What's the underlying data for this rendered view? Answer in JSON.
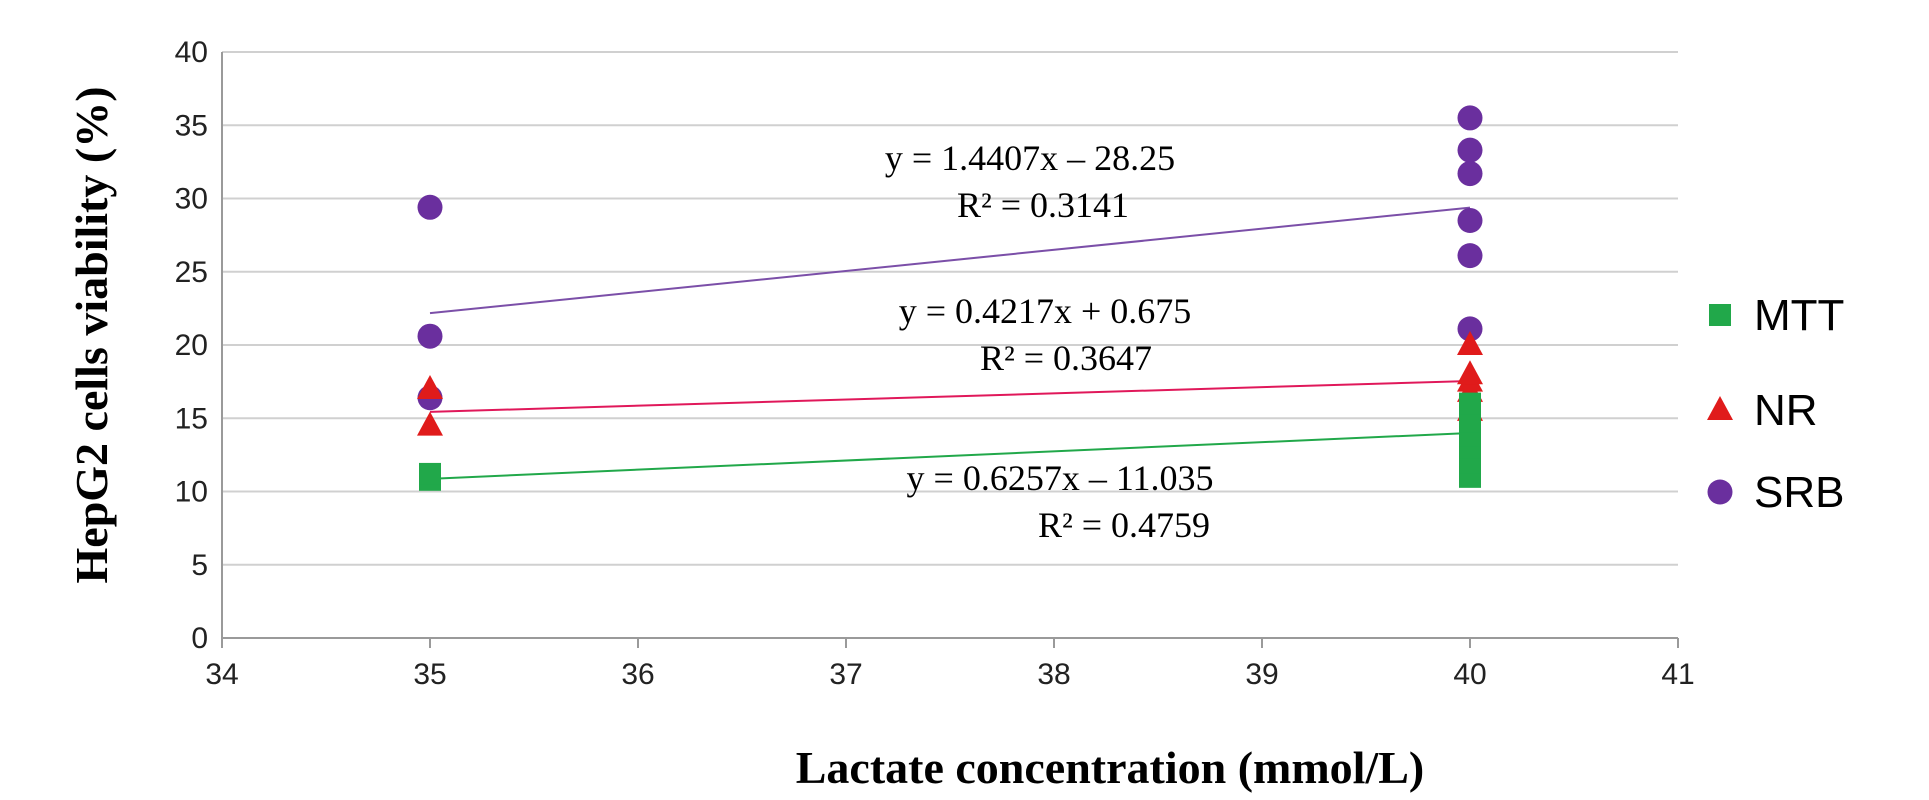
{
  "chart_data": {
    "type": "scatter",
    "xlabel": "Lactate concentration (mmol/L)",
    "ylabel": "HepG2 cells viability (%)",
    "xlim": [
      34,
      41
    ],
    "ylim": [
      0,
      40
    ],
    "xticks": [
      34,
      35,
      36,
      37,
      38,
      39,
      40,
      41
    ],
    "yticks": [
      0,
      5,
      10,
      15,
      20,
      25,
      30,
      35,
      40
    ],
    "grid": "horizontal",
    "legend_position": "right",
    "series": [
      {
        "name": "MTT",
        "marker": "square",
        "color": "#21a84a",
        "points": [
          [
            35,
            10.8
          ],
          [
            35,
            11.2
          ],
          [
            40,
            11.0
          ],
          [
            40,
            12.0
          ],
          [
            40,
            13.0
          ],
          [
            40,
            13.8
          ],
          [
            40,
            14.8
          ],
          [
            40,
            16.0
          ]
        ],
        "trendline": {
          "slope": 0.6257,
          "intercept": -11.035,
          "x_range": [
            35,
            40
          ],
          "color": "#21a84a",
          "equation": "y = 0.6257x – 11.035",
          "r2": "R² = 0.4759"
        }
      },
      {
        "name": "NR",
        "marker": "triangle",
        "color": "#e01b1b",
        "points": [
          [
            35,
            14.5
          ],
          [
            35,
            17.0
          ],
          [
            40,
            15.5
          ],
          [
            40,
            16.8
          ],
          [
            40,
            17.5
          ],
          [
            40,
            18.0
          ],
          [
            40,
            20.0
          ]
        ],
        "trendline": {
          "slope": 0.4217,
          "intercept": 0.675,
          "x_range": [
            35,
            40
          ],
          "color": "#e0185a",
          "equation": "y = 0.4217x + 0.675",
          "r2": "R² = 0.3647"
        }
      },
      {
        "name": "SRB",
        "marker": "circle",
        "color": "#6a2f9e",
        "points": [
          [
            35,
            29.4
          ],
          [
            35,
            20.6
          ],
          [
            35,
            16.4
          ],
          [
            40,
            35.5
          ],
          [
            40,
            33.3
          ],
          [
            40,
            31.7
          ],
          [
            40,
            28.5
          ],
          [
            40,
            26.1
          ],
          [
            40,
            21.1
          ]
        ],
        "trendline": {
          "slope": 1.4407,
          "intercept": -28.25,
          "x_range": [
            35,
            40
          ],
          "color": "#7b4fa8",
          "equation": "y = 1.4407x – 28.25",
          "r2": "R² = 0.3141"
        }
      }
    ]
  }
}
